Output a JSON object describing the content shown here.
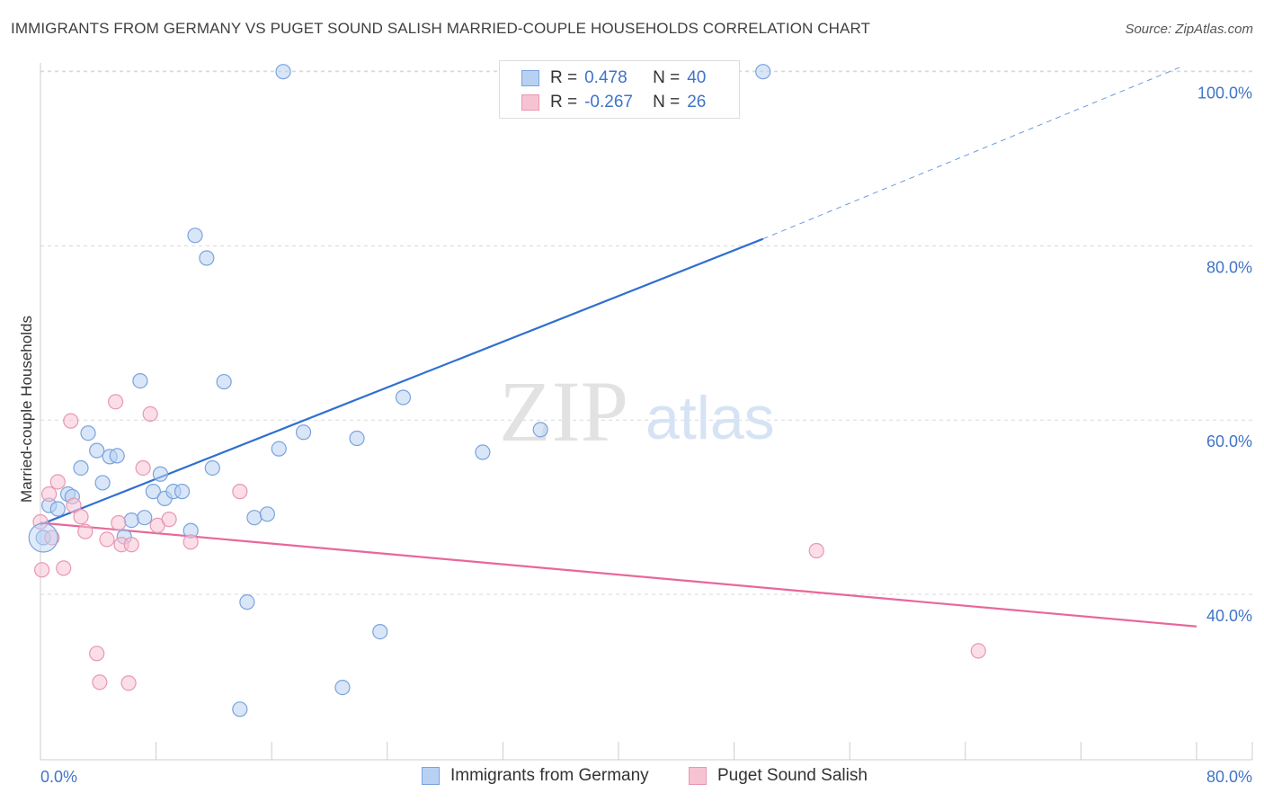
{
  "title": "IMMIGRANTS FROM GERMANY VS PUGET SOUND SALISH MARRIED-COUPLE HOUSEHOLDS CORRELATION CHART",
  "source": "Source: ZipAtlas.com",
  "watermark": {
    "zip": "ZIP",
    "atlas": "atlas"
  },
  "legend": {
    "rows": [
      {
        "r_label": "R =",
        "r_value": "0.478",
        "n_label": "N =",
        "n_value": "40"
      },
      {
        "r_label": "R =",
        "r_value": "-0.267",
        "n_label": "N =",
        "n_value": "26"
      }
    ]
  },
  "colors": {
    "blue_fill": "#b8d1f3",
    "blue_stroke": "#7aa3dd",
    "blue_line": "#2f6fd0",
    "pink_fill": "#f7c3d3",
    "pink_stroke": "#e897b2",
    "pink_line": "#e8679a",
    "grid": "#d9d9d9",
    "tick_text": "#3f74c9"
  },
  "chart_data": {
    "type": "scatter",
    "title": "IMMIGRANTS FROM GERMANY VS PUGET SOUND SALISH MARRIED-COUPLE HOUSEHOLDS CORRELATION CHART",
    "xlabel": "",
    "ylabel": "Married-couple Households",
    "xlim": [
      0,
      80
    ],
    "ylim": [
      21,
      101
    ],
    "x_tick_labels": [
      "0.0%",
      "80.0%"
    ],
    "y_ticks": [
      40,
      60,
      80,
      100
    ],
    "y_tick_labels": [
      "40.0%",
      "60.0%",
      "80.0%",
      "100.0%"
    ],
    "grid": true,
    "series": [
      {
        "name": "Immigrants from Germany",
        "color": "blue",
        "points": [
          [
            0.2,
            46.5
          ],
          [
            0.6,
            50.2
          ],
          [
            1.2,
            49.8
          ],
          [
            1.9,
            51.5
          ],
          [
            2.2,
            51.2
          ],
          [
            2.8,
            54.5
          ],
          [
            3.3,
            58.5
          ],
          [
            3.9,
            56.5
          ],
          [
            4.3,
            52.8
          ],
          [
            4.8,
            55.8
          ],
          [
            5.3,
            55.9
          ],
          [
            5.8,
            46.6
          ],
          [
            6.3,
            48.5
          ],
          [
            6.9,
            64.5
          ],
          [
            7.2,
            48.8
          ],
          [
            7.8,
            51.8
          ],
          [
            8.3,
            53.8
          ],
          [
            8.6,
            51.0
          ],
          [
            9.2,
            51.8
          ],
          [
            9.8,
            51.8
          ],
          [
            10.4,
            47.3
          ],
          [
            10.7,
            81.2
          ],
          [
            11.5,
            78.6
          ],
          [
            11.9,
            54.5
          ],
          [
            12.7,
            64.4
          ],
          [
            13.8,
            26.8
          ],
          [
            14.3,
            39.1
          ],
          [
            14.8,
            48.8
          ],
          [
            15.7,
            49.2
          ],
          [
            16.8,
            100.0
          ],
          [
            16.5,
            56.7
          ],
          [
            18.2,
            58.6
          ],
          [
            20.9,
            29.3
          ],
          [
            21.9,
            57.9
          ],
          [
            23.5,
            35.7
          ],
          [
            25.1,
            62.6
          ],
          [
            30.6,
            56.3
          ],
          [
            34.6,
            58.9
          ],
          [
            47.6,
            100.0
          ],
          [
            50.0,
            100.0
          ]
        ],
        "trendline": {
          "x": [
            0,
            50
          ],
          "y": [
            48.0,
            80.8
          ],
          "dashed_extension": {
            "x": [
              50,
              79.0
            ],
            "y": [
              80.8,
              100.6
            ]
          }
        }
      },
      {
        "name": "Puget Sound Salish",
        "color": "pink",
        "points": [
          [
            0.1,
            42.8
          ],
          [
            0.6,
            51.5
          ],
          [
            0.8,
            46.5
          ],
          [
            1.2,
            52.9
          ],
          [
            1.6,
            43.0
          ],
          [
            2.1,
            59.9
          ],
          [
            2.3,
            50.2
          ],
          [
            2.8,
            48.9
          ],
          [
            3.1,
            47.2
          ],
          [
            3.9,
            33.2
          ],
          [
            4.1,
            29.9
          ],
          [
            4.6,
            46.3
          ],
          [
            5.2,
            62.1
          ],
          [
            5.4,
            48.2
          ],
          [
            5.6,
            45.7
          ],
          [
            6.1,
            29.8
          ],
          [
            6.3,
            45.7
          ],
          [
            7.1,
            54.5
          ],
          [
            7.6,
            60.7
          ],
          [
            8.1,
            47.9
          ],
          [
            8.9,
            48.6
          ],
          [
            10.4,
            46.0
          ],
          [
            13.8,
            51.8
          ],
          [
            53.7,
            45.0
          ],
          [
            64.9,
            33.5
          ],
          [
            0.0,
            48.3
          ]
        ],
        "trendline": {
          "x": [
            0,
            80
          ],
          "y": [
            48.2,
            36.3
          ]
        }
      }
    ]
  },
  "bottom_legend": [
    {
      "label": "Immigrants from Germany"
    },
    {
      "label": "Puget Sound Salish"
    }
  ]
}
